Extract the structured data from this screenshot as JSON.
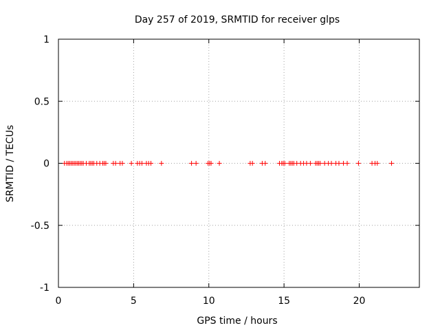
{
  "chart_data": {
    "type": "scatter",
    "title": "Day 257 of 2019, SRMTID for receiver glps",
    "xlabel": "GPS time / hours",
    "ylabel": "SRMTID / TECUs",
    "xlim": [
      0,
      24
    ],
    "ylim": [
      -1,
      1
    ],
    "x_ticks": [
      0,
      5,
      10,
      15,
      20
    ],
    "x_tick_labels": [
      "0",
      "5",
      "10",
      "15",
      "20"
    ],
    "y_ticks": [
      -1,
      -0.5,
      0,
      0.5,
      1
    ],
    "y_tick_labels": [
      "-1",
      "-0.5",
      "0",
      "0.5",
      "1"
    ],
    "grid": true,
    "marker": "+",
    "marker_color": "#ff0000",
    "series": [
      {
        "name": "SRMTID",
        "x": [
          0.4,
          0.55,
          0.65,
          0.75,
          0.85,
          0.95,
          1.05,
          1.15,
          1.25,
          1.35,
          1.45,
          1.55,
          1.65,
          1.85,
          2.05,
          2.15,
          2.25,
          2.35,
          2.55,
          2.75,
          2.95,
          3.05,
          3.15,
          3.65,
          3.8,
          4.1,
          4.25,
          4.85,
          5.25,
          5.4,
          5.55,
          5.85,
          6.0,
          6.15,
          6.85,
          8.85,
          9.15,
          9.95,
          10.05,
          10.15,
          10.7,
          12.75,
          12.9,
          13.55,
          13.75,
          14.7,
          14.85,
          14.95,
          15.05,
          15.35,
          15.45,
          15.55,
          15.65,
          15.85,
          16.1,
          16.3,
          16.5,
          16.75,
          17.1,
          17.2,
          17.3,
          17.4,
          17.7,
          17.95,
          18.15,
          18.45,
          18.65,
          18.95,
          19.2,
          19.95,
          20.85,
          21.05,
          21.2,
          22.15
        ],
        "y": [
          0,
          0,
          0,
          0,
          0,
          0,
          0,
          0,
          0,
          0,
          0,
          0,
          0,
          0,
          0,
          0,
          0,
          0,
          0,
          0,
          0,
          0,
          0,
          0,
          0,
          0,
          0,
          0,
          0,
          0,
          0,
          0,
          0,
          0,
          0,
          0,
          0,
          0,
          0,
          0,
          0,
          0,
          0,
          0,
          0,
          0,
          0,
          0,
          0,
          0,
          0,
          0,
          0,
          0,
          0,
          0,
          0,
          0,
          0,
          0,
          0,
          0,
          0,
          0,
          0,
          0,
          0,
          0,
          0,
          0,
          0,
          0,
          0,
          0
        ]
      }
    ]
  }
}
